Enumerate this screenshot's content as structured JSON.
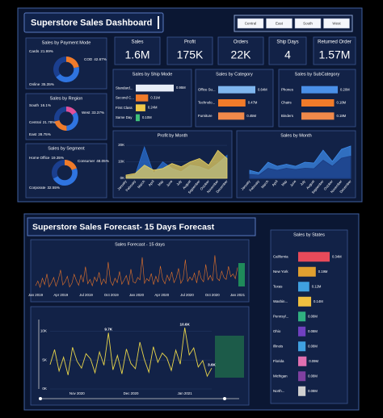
{
  "header": {
    "title": "Superstore Sales Dashboard",
    "filters": [
      "Central",
      "East",
      "South",
      "West"
    ]
  },
  "kpis": [
    {
      "label": "Sales",
      "value": "1.6M"
    },
    {
      "label": "Profit",
      "value": "175K"
    },
    {
      "label": "Orders",
      "value": "22K"
    },
    {
      "label": "Ship Days",
      "value": "4"
    },
    {
      "label": "Returned Order",
      "value": "1.57M"
    }
  ],
  "forecast_header": {
    "title": "Superstore Sales Forecast- 15 Days Forecast"
  },
  "chart_data": [
    {
      "type": "pie",
      "title": "Sales by Payment Mode",
      "categories": [
        "Cards",
        "COD",
        "Online"
      ],
      "values": [
        21.99,
        42.67,
        35.35
      ],
      "value_labels": [
        "21.99%",
        "42.67%",
        "35.35%"
      ],
      "colors": [
        "#f07b2a",
        "#2f74e0",
        "#1b3f8f"
      ]
    },
    {
      "type": "pie",
      "title": "Sales by Region",
      "categories": [
        "South",
        "West",
        "Central",
        "East"
      ],
      "values": [
        16.1,
        33.37,
        21.78,
        28.75
      ],
      "value_labels": [
        "16.1%",
        "33.37%",
        "21.78%",
        "28.75%"
      ],
      "colors": [
        "#e0509a",
        "#2f74e0",
        "#f07b2a",
        "#1b3f8f"
      ]
    },
    {
      "type": "pie",
      "title": "Sales by Segment",
      "categories": [
        "Home Office",
        "Consumer",
        "Corporate"
      ],
      "values": [
        19.35,
        48.05,
        32.55
      ],
      "value_labels": [
        "19.35%",
        "48.05%",
        "32.55%"
      ],
      "colors": [
        "#f07b2a",
        "#2f74e0",
        "#1b3f8f"
      ]
    },
    {
      "type": "hbar",
      "title": "Sales by Ship Mode",
      "categories": [
        "Standard...",
        "Second C...",
        "First Class",
        "Same Day"
      ],
      "values": [
        0.95,
        0.31,
        0.24,
        0.1
      ],
      "value_labels": [
        "0.95M",
        "0.31M",
        "0.24M",
        "0.10M"
      ],
      "colors": [
        "#e8eef8",
        "#f07b2a",
        "#f0c94a",
        "#3fbf7a"
      ]
    },
    {
      "type": "hbar",
      "title": "Sales by Category",
      "categories": [
        "Office Su...",
        "Technolo...",
        "Furniture"
      ],
      "values": [
        0.64,
        0.47,
        0.45
      ],
      "value_labels": [
        "0.64M",
        "0.47M",
        "0.45M"
      ],
      "colors": [
        "#7fb6ee",
        "#f07b2a",
        "#f0894a"
      ]
    },
    {
      "type": "hbar",
      "title": "Sales by SubCategory",
      "categories": [
        "Phones",
        "Chairs",
        "Binders"
      ],
      "values": [
        0.2,
        0.18,
        0.18
      ],
      "value_labels": [
        "0.20M",
        "0.18M",
        "0.18M"
      ],
      "colors": [
        "#4a90e8",
        "#f07b2a",
        "#f0894a"
      ]
    },
    {
      "type": "area",
      "title": "Profit by Month",
      "categories": [
        "January",
        "February",
        "March",
        "April",
        "May",
        "June",
        "July",
        "August",
        "September",
        "October",
        "November",
        "December"
      ],
      "series": [
        {
          "color": "#2a6fd0",
          "values": [
            1000,
            2000,
            19000,
            3000,
            10000,
            6000,
            4000,
            8000,
            7000,
            5000,
            9000,
            14000
          ]
        },
        {
          "color": "#e8d060",
          "values": [
            2000,
            3000,
            8000,
            5000,
            6000,
            9000,
            7000,
            10000,
            12000,
            8000,
            17000,
            12000
          ]
        }
      ],
      "ylim": [
        0,
        22000
      ],
      "yticks": [
        {
          "value": 20000,
          "label": "20K"
        },
        {
          "value": 10000,
          "label": "10K"
        },
        {
          "value": 0,
          "label": "0K"
        }
      ]
    },
    {
      "type": "area",
      "title": "Sales by Month",
      "categories": [
        "January",
        "February",
        "March",
        "April",
        "May",
        "June",
        "July",
        "August",
        "September",
        "October",
        "November",
        "December"
      ],
      "series": [
        {
          "color": "#3c8ae8",
          "values": [
            20000,
            14000,
            40000,
            30000,
            35000,
            30000,
            40000,
            38000,
            70000,
            42000,
            72000,
            80000
          ]
        },
        {
          "color": "#1a3a80",
          "values": [
            10000,
            8000,
            25000,
            20000,
            25000,
            22000,
            25000,
            24000,
            45000,
            30000,
            50000,
            55000
          ]
        }
      ],
      "ylim": [
        0,
        90000
      ]
    },
    {
      "type": "line",
      "title": "Sales Forecast - 15 days",
      "x_labels": [
        "Jan 2019",
        "Apr 2019",
        "Jul 2019",
        "Oct 2019",
        "Jan 2020",
        "Apr 2020",
        "Jul 2020",
        "Oct 2020",
        "Jan 2021"
      ],
      "color": "#e8742a",
      "ylim": [
        0,
        10000
      ],
      "values": [
        1200,
        2400,
        800,
        3100,
        1500,
        4200,
        900,
        2000,
        3300,
        1100,
        2700,
        5200,
        1400,
        2200,
        3600,
        900,
        1800,
        4100,
        2500,
        1300,
        3900,
        2100,
        6000,
        1700,
        2800,
        1200,
        3400,
        2300,
        4600,
        1500,
        2900,
        1800,
        7200,
        2400,
        1300,
        3100,
        2000,
        4800,
        1600,
        2600,
        3800,
        1400,
        5400,
        2200,
        1900,
        3300,
        2700,
        8400,
        1800,
        3000,
        2400,
        4300,
        1500,
        3600,
        2100,
        6200,
        2800,
        1700,
        3900,
        2500,
        4700,
        2000,
        3200,
        5600,
        1800,
        2900,
        7800,
        2300,
        3400,
        2600,
        4400,
        1900,
        5100,
        3000,
        2200,
        6600,
        2700,
        3800,
        2400,
        8900,
        3100,
        2500,
        4900,
        3300,
        2800,
        6100,
        3500,
        4200,
        3000,
        5800
      ]
    },
    {
      "type": "line",
      "x_labels": [
        "Nov 2020",
        "Dec 2020",
        "Jan 2021"
      ],
      "color": "#e8d54a",
      "ylim": [
        0,
        12000
      ],
      "yticks": [
        {
          "value": 10000,
          "label": "10K"
        },
        {
          "value": 5000,
          "label": "5K"
        },
        {
          "value": 0,
          "label": "0K"
        }
      ],
      "values": [
        4200,
        6800,
        3100,
        5500,
        2400,
        7200,
        4800,
        3600,
        6100,
        5200,
        2800,
        6400,
        4100,
        9700,
        3300,
        5800,
        2600,
        6900,
        4400,
        3500,
        8100,
        5100,
        2900,
        7300,
        4600,
        6200,
        5400,
        3200,
        6700,
        4300,
        10600,
        5900,
        7100,
        3800,
        4900,
        2200,
        3600
      ],
      "value_labels": [
        null,
        null,
        null,
        null,
        null,
        null,
        null,
        null,
        null,
        null,
        null,
        null,
        null,
        "9.7K",
        null,
        null,
        null,
        null,
        null,
        null,
        null,
        null,
        null,
        null,
        null,
        null,
        null,
        null,
        null,
        null,
        "10.6K",
        null,
        null,
        null,
        null,
        null,
        "3.6K"
      ]
    },
    {
      "type": "hbar",
      "title": "Sales by States",
      "categories": [
        "California",
        "New York",
        "Texas",
        "Washin...",
        "Pennsyl...",
        "Ohio",
        "Illinois",
        "Florida",
        "Michigan",
        "North..."
      ],
      "values": [
        0.34,
        0.19,
        0.12,
        0.14,
        0.08,
        0.08,
        0.08,
        0.09,
        0.08,
        0.08
      ],
      "value_labels": [
        "0.34M",
        "0.19M",
        "0.12M",
        "0.14M",
        "0.08M",
        "0.08M",
        "0.08M",
        "0.09M",
        "0.08M",
        "0.08M"
      ],
      "colors": [
        "#e84a5a",
        "#e0a030",
        "#3fa0e0",
        "#f0c040",
        "#30b080",
        "#7040c0",
        "#40a0e0",
        "#e070b0",
        "#8040a0",
        "#cfcfcf"
      ]
    }
  ]
}
